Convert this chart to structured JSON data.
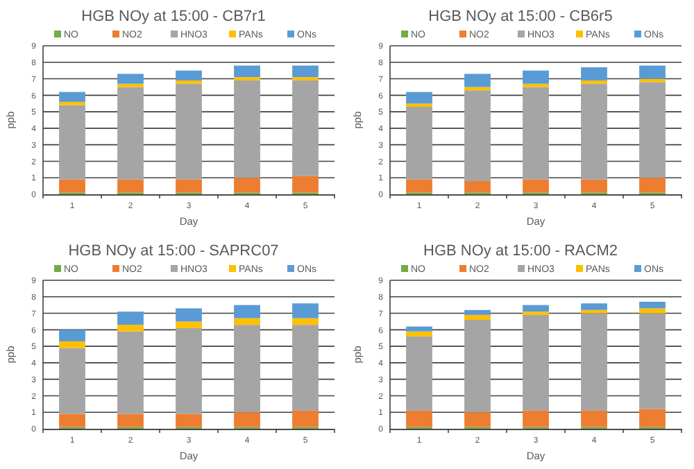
{
  "chart_data": [
    {
      "type": "bar",
      "title": "HGB NOy at 15:00 - CB7r1",
      "xlabel": "Day",
      "ylabel": "ppb",
      "categories": [
        "1",
        "2",
        "3",
        "4",
        "5"
      ],
      "stacked": true,
      "ylim": [
        0,
        9
      ],
      "yticks": [
        0,
        1,
        2,
        3,
        4,
        5,
        6,
        7,
        8,
        9
      ],
      "grid": "y",
      "legend": "top",
      "series": [
        {
          "name": "NO",
          "color": "#70ad47",
          "values": [
            0.1,
            0.1,
            0.1,
            0.1,
            0.1
          ]
        },
        {
          "name": "NO2",
          "color": "#ed7d31",
          "values": [
            0.8,
            0.8,
            0.8,
            0.9,
            1.0
          ]
        },
        {
          "name": "HNO3",
          "color": "#a5a5a5",
          "values": [
            4.5,
            5.6,
            5.8,
            5.9,
            5.8
          ]
        },
        {
          "name": "PANs",
          "color": "#ffc000",
          "values": [
            0.2,
            0.2,
            0.2,
            0.2,
            0.2
          ]
        },
        {
          "name": "ONs",
          "color": "#5b9bd5",
          "values": [
            0.6,
            0.6,
            0.6,
            0.7,
            0.7
          ]
        }
      ]
    },
    {
      "type": "bar",
      "title": "HGB NOy at 15:00 - CB6r5",
      "xlabel": "Day",
      "ylabel": "ppb",
      "categories": [
        "1",
        "2",
        "3",
        "4",
        "5"
      ],
      "stacked": true,
      "ylim": [
        0,
        9
      ],
      "yticks": [
        0,
        1,
        2,
        3,
        4,
        5,
        6,
        7,
        8,
        9
      ],
      "grid": "y",
      "legend": "top",
      "series": [
        {
          "name": "NO",
          "color": "#70ad47",
          "values": [
            0.1,
            0.1,
            0.1,
            0.1,
            0.1
          ]
        },
        {
          "name": "NO2",
          "color": "#ed7d31",
          "values": [
            0.8,
            0.7,
            0.8,
            0.8,
            0.9
          ]
        },
        {
          "name": "HNO3",
          "color": "#a5a5a5",
          "values": [
            4.4,
            5.5,
            5.6,
            5.8,
            5.8
          ]
        },
        {
          "name": "PANs",
          "color": "#ffc000",
          "values": [
            0.2,
            0.2,
            0.2,
            0.2,
            0.2
          ]
        },
        {
          "name": "ONs",
          "color": "#5b9bd5",
          "values": [
            0.7,
            0.8,
            0.8,
            0.8,
            0.8
          ]
        }
      ]
    },
    {
      "type": "bar",
      "title": "HGB NOy at 15:00 - SAPRC07",
      "xlabel": "Day",
      "ylabel": "ppb",
      "categories": [
        "1",
        "2",
        "3",
        "4",
        "5"
      ],
      "stacked": true,
      "ylim": [
        0,
        9
      ],
      "yticks": [
        0,
        1,
        2,
        3,
        4,
        5,
        6,
        7,
        8,
        9
      ],
      "grid": "y",
      "legend": "top",
      "series": [
        {
          "name": "NO",
          "color": "#70ad47",
          "values": [
            0.1,
            0.1,
            0.1,
            0.1,
            0.1
          ]
        },
        {
          "name": "NO2",
          "color": "#ed7d31",
          "values": [
            0.8,
            0.8,
            0.8,
            0.9,
            1.0
          ]
        },
        {
          "name": "HNO3",
          "color": "#a5a5a5",
          "values": [
            4.0,
            5.0,
            5.2,
            5.3,
            5.2
          ]
        },
        {
          "name": "PANs",
          "color": "#ffc000",
          "values": [
            0.4,
            0.4,
            0.4,
            0.4,
            0.4
          ]
        },
        {
          "name": "ONs",
          "color": "#5b9bd5",
          "values": [
            0.7,
            0.8,
            0.8,
            0.8,
            0.9
          ]
        }
      ]
    },
    {
      "type": "bar",
      "title": "HGB NOy at 15:00 - RACM2",
      "xlabel": "Day",
      "ylabel": "ppb",
      "categories": [
        "1",
        "2",
        "3",
        "4",
        "5"
      ],
      "stacked": true,
      "ylim": [
        0,
        9
      ],
      "yticks": [
        0,
        1,
        2,
        3,
        4,
        5,
        6,
        7,
        8,
        9
      ],
      "grid": "y",
      "legend": "top",
      "series": [
        {
          "name": "NO",
          "color": "#70ad47",
          "values": [
            0.1,
            0.1,
            0.1,
            0.1,
            0.1
          ]
        },
        {
          "name": "NO2",
          "color": "#ed7d31",
          "values": [
            1.0,
            0.9,
            1.0,
            1.0,
            1.1
          ]
        },
        {
          "name": "HNO3",
          "color": "#a5a5a5",
          "values": [
            4.5,
            5.6,
            5.8,
            5.9,
            5.8
          ]
        },
        {
          "name": "PANs",
          "color": "#ffc000",
          "values": [
            0.3,
            0.3,
            0.2,
            0.2,
            0.3
          ]
        },
        {
          "name": "ONs",
          "color": "#5b9bd5",
          "values": [
            0.3,
            0.3,
            0.4,
            0.4,
            0.4
          ]
        }
      ]
    }
  ]
}
